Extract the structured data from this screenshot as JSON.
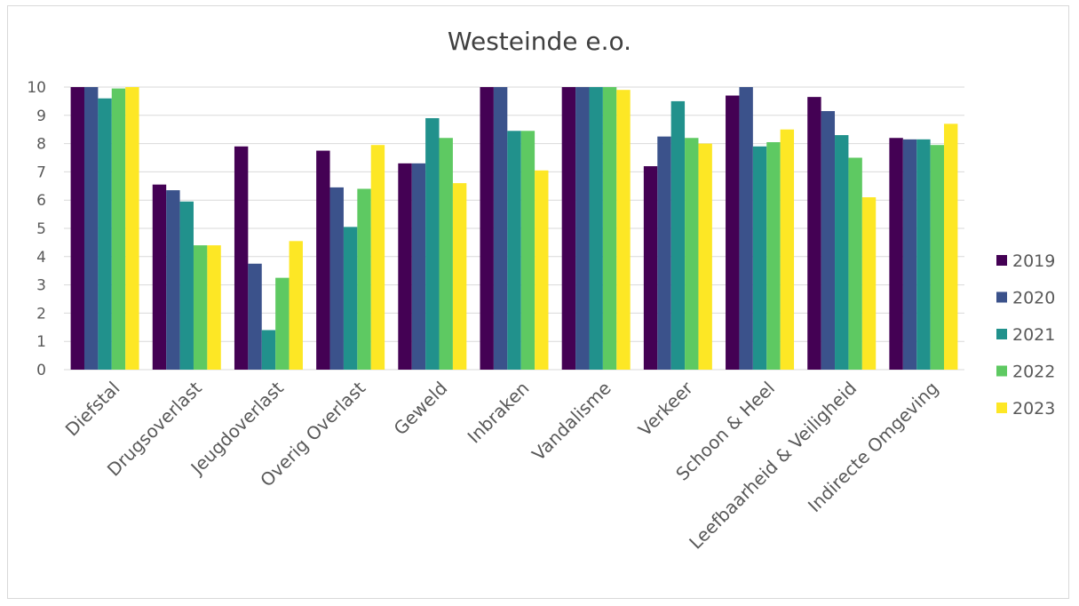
{
  "chart_data": {
    "type": "bar",
    "title": "Westeinde e.o.",
    "xlabel": "",
    "ylabel": "",
    "ylim": [
      0,
      10
    ],
    "yticks": [
      "0",
      "1",
      "2",
      "3",
      "4",
      "5",
      "6",
      "7",
      "8",
      "9",
      "10"
    ],
    "grid": true,
    "legend_position": "right",
    "categories": [
      "Diefstal",
      "Drugsoverlast",
      "Jeugdoverlast",
      "Overig Overlast",
      "Geweld",
      "Inbraken",
      "Vandalisme",
      "Verkeer",
      "Schoon & Heel",
      "Leefbaarheid & Veiligheid",
      "Indirecte Omgeving"
    ],
    "series": [
      {
        "name": "2019",
        "color": "#440154",
        "values": [
          10,
          6.55,
          7.9,
          7.75,
          7.3,
          10,
          10,
          7.2,
          9.7,
          9.65,
          8.2
        ]
      },
      {
        "name": "2020",
        "color": "#3b528b",
        "values": [
          10,
          6.35,
          3.75,
          6.45,
          7.3,
          10,
          10,
          8.25,
          10,
          9.15,
          8.15
        ]
      },
      {
        "name": "2021",
        "color": "#21918c",
        "values": [
          9.6,
          5.95,
          1.4,
          5.05,
          8.9,
          8.45,
          10,
          9.5,
          7.9,
          8.3,
          8.15
        ]
      },
      {
        "name": "2022",
        "color": "#5ec962",
        "values": [
          9.95,
          4.4,
          3.25,
          6.4,
          8.2,
          8.45,
          10,
          8.2,
          8.05,
          7.5,
          7.95
        ]
      },
      {
        "name": "2023",
        "color": "#fde725",
        "values": [
          10,
          4.4,
          4.55,
          7.95,
          6.6,
          7.05,
          9.9,
          8.0,
          8.5,
          6.1,
          8.7
        ]
      }
    ]
  }
}
